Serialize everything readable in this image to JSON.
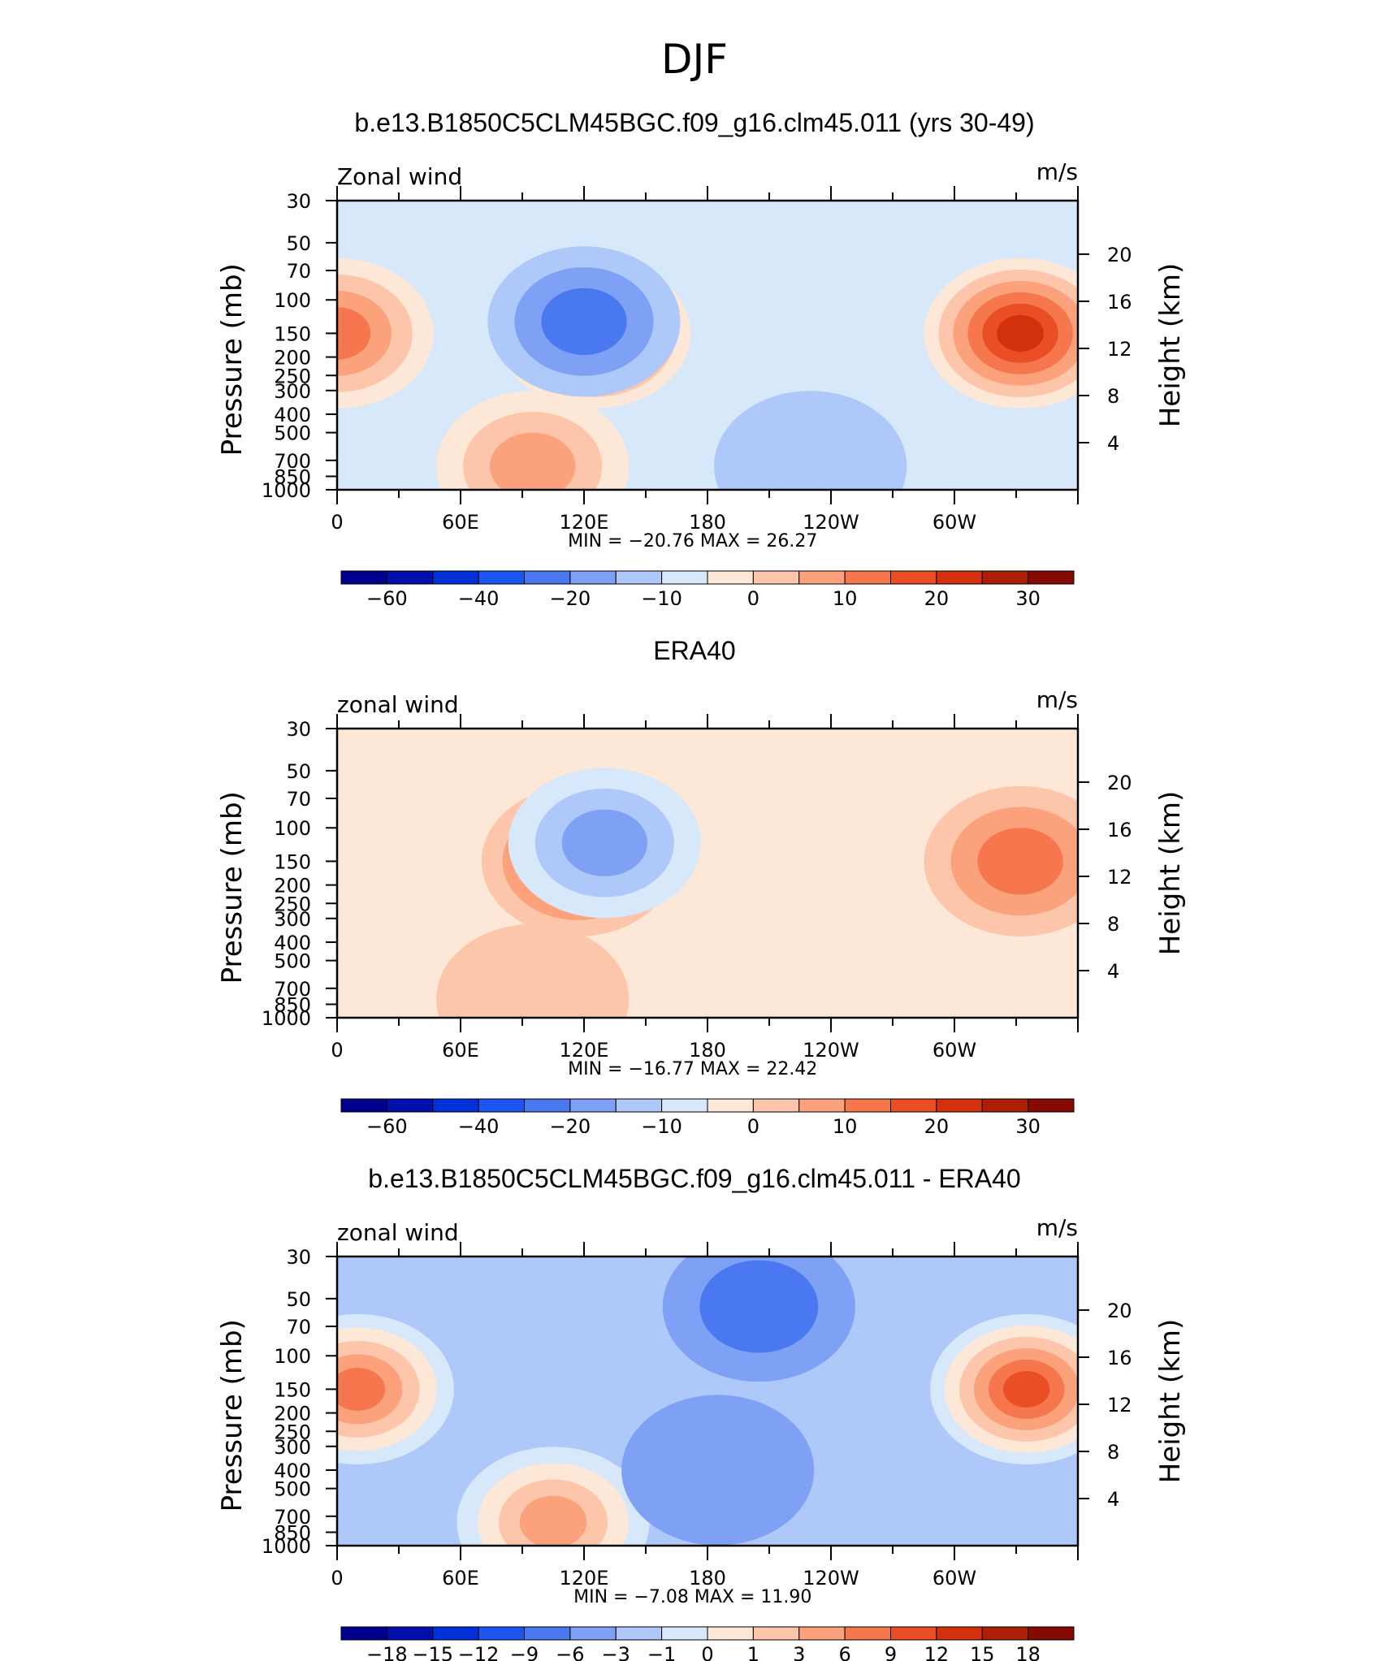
{
  "main_title": "DJF",
  "chart_data": [
    {
      "type": "heatmap",
      "title": "b.e13.B1850C5CLM45BGC.f09_g16.clm45.011 (yrs 30-49)",
      "left_label": "Zonal wind",
      "units": "m/s",
      "ylabel": "Pressure (mb)",
      "ylabel_right": "Height (km)",
      "x_ticks": [
        "0",
        "60E",
        "120E",
        "180",
        "120W",
        "60W"
      ],
      "y_ticks": [
        "30",
        "50",
        "70",
        "100",
        "150",
        "200",
        "250",
        "300",
        "400",
        "500",
        "700",
        "850",
        "1000"
      ],
      "y_right_ticks": [
        "20",
        "16",
        "12",
        "8",
        "4"
      ],
      "min_label": "MIN",
      "min_value": "−20.76",
      "max_label": "MAX",
      "max_value": "26.27",
      "colorbar_labels": [
        "−60",
        "−40",
        "−20",
        "−10",
        "0",
        "10",
        "20",
        "30"
      ],
      "colorbar_colors": [
        "#00008f",
        "#0010ac",
        "#0030d8",
        "#1d55f0",
        "#4a78f0",
        "#7ea1f5",
        "#aec8f9",
        "#d8e8fb",
        "#fde7d6",
        "#fdc6aa",
        "#fba17c",
        "#f6774e",
        "#ea4e24",
        "#d3310d",
        "#ad1e06",
        "#850a00"
      ],
      "xlim": [
        0,
        360
      ],
      "ylim_mb": [
        1000,
        30
      ],
      "background_level": "#d8e8fb",
      "features": [
        {
          "lon": 125,
          "p": 150,
          "value": 26.27,
          "color": "#d3310d"
        },
        {
          "lon": 332,
          "p": 150,
          "value": 26,
          "color": "#d3310d"
        },
        {
          "lon": 0,
          "p": 150,
          "value": 12,
          "color": "#f6774e"
        },
        {
          "lon": 120,
          "p": 130,
          "value": -20.76,
          "color": "#4a78f0"
        },
        {
          "lon": 95,
          "p": 750,
          "value": 8,
          "color": "#fba17c"
        },
        {
          "lon": 230,
          "p": 750,
          "value": -4,
          "color": "#aec8f9"
        }
      ]
    },
    {
      "type": "heatmap",
      "title": "ERA40",
      "left_label": "zonal wind",
      "units": "m/s",
      "ylabel": "Pressure (mb)",
      "ylabel_right": "Height (km)",
      "x_ticks": [
        "0",
        "60E",
        "120E",
        "180",
        "120W",
        "60W"
      ],
      "y_ticks": [
        "30",
        "50",
        "70",
        "100",
        "150",
        "200",
        "250",
        "300",
        "400",
        "500",
        "700",
        "850",
        "1000"
      ],
      "y_right_ticks": [
        "20",
        "16",
        "12",
        "8",
        "4"
      ],
      "min_label": "MIN",
      "min_value": "−16.77",
      "max_label": "MAX",
      "max_value": "22.42",
      "colorbar_labels": [
        "−60",
        "−40",
        "−20",
        "−10",
        "0",
        "10",
        "20",
        "30"
      ],
      "colorbar_colors": [
        "#00008f",
        "#0010ac",
        "#0030d8",
        "#1d55f0",
        "#4a78f0",
        "#7ea1f5",
        "#aec8f9",
        "#d8e8fb",
        "#fde7d6",
        "#fdc6aa",
        "#fba17c",
        "#f6774e",
        "#ea4e24",
        "#d3310d",
        "#ad1e06",
        "#850a00"
      ],
      "xlim": [
        0,
        360
      ],
      "ylim_mb": [
        1000,
        30
      ],
      "background_level": "#fde7d6",
      "features": [
        {
          "lon": 117,
          "p": 150,
          "value": 22.42,
          "color": "#ea4e24"
        },
        {
          "lon": 332,
          "p": 150,
          "value": 16,
          "color": "#f6774e"
        },
        {
          "lon": 130,
          "p": 120,
          "value": -16.77,
          "color": "#7ea1f5"
        },
        {
          "lon": 95,
          "p": 800,
          "value": 5,
          "color": "#fdc6aa"
        }
      ]
    },
    {
      "type": "heatmap",
      "title": "b.e13.B1850C5CLM45BGC.f09_g16.clm45.011 - ERA40",
      "left_label": "zonal wind",
      "units": "m/s",
      "ylabel": "Pressure (mb)",
      "ylabel_right": "Height (km)",
      "x_ticks": [
        "0",
        "60E",
        "120E",
        "180",
        "120W",
        "60W"
      ],
      "y_ticks": [
        "30",
        "50",
        "70",
        "100",
        "150",
        "200",
        "250",
        "300",
        "400",
        "500",
        "700",
        "850",
        "1000"
      ],
      "y_right_ticks": [
        "20",
        "16",
        "12",
        "8",
        "4"
      ],
      "min_label": "MIN",
      "min_value": "−7.08",
      "max_label": "MAX",
      "max_value": "11.90",
      "colorbar_labels": [
        "−18",
        "−15",
        "−12",
        "−9",
        "−6",
        "−3",
        "−1",
        "0",
        "1",
        "3",
        "6",
        "9",
        "12",
        "15",
        "18"
      ],
      "colorbar_colors": [
        "#00008f",
        "#0010ac",
        "#0030d8",
        "#1d55f0",
        "#4a78f0",
        "#7ea1f5",
        "#aec8f9",
        "#d8e8fb",
        "#fde7d6",
        "#fdc6aa",
        "#fba17c",
        "#f6774e",
        "#ea4e24",
        "#d3310d",
        "#ad1e06",
        "#850a00"
      ],
      "xlim": [
        0,
        360
      ],
      "ylim_mb": [
        1000,
        30
      ],
      "background_level": "#aec8f9",
      "features": [
        {
          "lon": 335,
          "p": 150,
          "value": 11.9,
          "color": "#ea4e24"
        },
        {
          "lon": 10,
          "p": 150,
          "value": 9,
          "color": "#f6774e"
        },
        {
          "lon": 105,
          "p": 750,
          "value": 6,
          "color": "#fba17c"
        },
        {
          "lon": 205,
          "p": 55,
          "value": -7.08,
          "color": "#4a78f0"
        },
        {
          "lon": 185,
          "p": 400,
          "value": -6,
          "color": "#7ea1f5"
        }
      ]
    }
  ]
}
